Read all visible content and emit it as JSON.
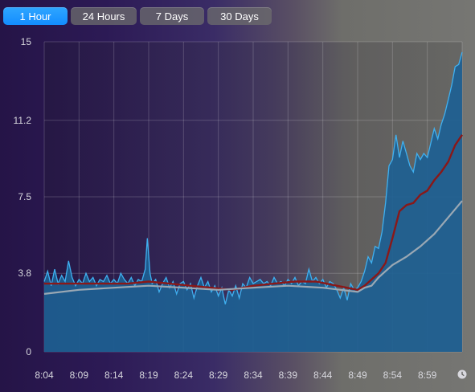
{
  "tabs": [
    {
      "label": "1 Hour",
      "active": true
    },
    {
      "label": "24 Hours",
      "active": false
    },
    {
      "label": "7 Days",
      "active": false
    },
    {
      "label": "30 Days",
      "active": false
    }
  ],
  "clock_icon": "clock-icon",
  "colors": {
    "area": "#1d5f92",
    "area_line": "#3fb0f0",
    "average_line": "#8a1818",
    "baseline_line": "#9aa8b4",
    "tab_active": "#1b95ff"
  },
  "chart_data": {
    "type": "area",
    "title": "",
    "xlabel": "",
    "ylabel": "",
    "ylim": [
      0,
      15
    ],
    "y_ticks": [
      "0",
      "3.8",
      "7.5",
      "11.2",
      "15"
    ],
    "y_tick_values": [
      0,
      3.8,
      7.5,
      11.2,
      15
    ],
    "x_ticks": [
      "8:04",
      "8:09",
      "8:14",
      "8:19",
      "8:24",
      "8:29",
      "8:34",
      "8:39",
      "8:44",
      "8:49",
      "8:54",
      "8:59"
    ],
    "x_tick_values": [
      0,
      5,
      10,
      15,
      20,
      25,
      30,
      35,
      40,
      45,
      50,
      55
    ],
    "xlim": [
      0,
      60
    ],
    "grid": true,
    "series": [
      {
        "values": [
          [
            0,
            3.4
          ],
          [
            0.5,
            3.9
          ],
          [
            1,
            3.2
          ],
          [
            1.5,
            4.0
          ],
          [
            2,
            3.3
          ],
          [
            2.5,
            3.7
          ],
          [
            3,
            3.4
          ],
          [
            3.5,
            4.4
          ],
          [
            4,
            3.6
          ],
          [
            4.5,
            3.2
          ],
          [
            5,
            3.5
          ],
          [
            5.5,
            3.3
          ],
          [
            6,
            3.8
          ],
          [
            6.5,
            3.4
          ],
          [
            7,
            3.6
          ],
          [
            7.5,
            3.2
          ],
          [
            8,
            3.5
          ],
          [
            8.5,
            3.4
          ],
          [
            9,
            3.7
          ],
          [
            9.5,
            3.3
          ],
          [
            10,
            3.5
          ],
          [
            10.5,
            3.3
          ],
          [
            11,
            3.8
          ],
          [
            11.5,
            3.5
          ],
          [
            12,
            3.3
          ],
          [
            12.5,
            3.6
          ],
          [
            13,
            3.2
          ],
          [
            13.5,
            3.5
          ],
          [
            14,
            3.4
          ],
          [
            14.5,
            4.0
          ],
          [
            14.8,
            5.5
          ],
          [
            15.2,
            3.8
          ],
          [
            15.5,
            3.3
          ],
          [
            16,
            3.5
          ],
          [
            16.5,
            2.9
          ],
          [
            17,
            3.3
          ],
          [
            17.5,
            3.6
          ],
          [
            18,
            3.1
          ],
          [
            18.5,
            3.4
          ],
          [
            19,
            2.8
          ],
          [
            19.5,
            3.3
          ],
          [
            20,
            3.4
          ],
          [
            20.5,
            3.0
          ],
          [
            21,
            3.3
          ],
          [
            21.5,
            2.6
          ],
          [
            22,
            3.2
          ],
          [
            22.5,
            3.6
          ],
          [
            23,
            3.1
          ],
          [
            23.5,
            3.4
          ],
          [
            24,
            2.9
          ],
          [
            24.5,
            3.2
          ],
          [
            25,
            2.7
          ],
          [
            25.5,
            3.1
          ],
          [
            26,
            2.3
          ],
          [
            26.5,
            3.0
          ],
          [
            27,
            2.7
          ],
          [
            27.5,
            3.2
          ],
          [
            28,
            2.6
          ],
          [
            28.5,
            3.3
          ],
          [
            29,
            3.1
          ],
          [
            29.5,
            3.6
          ],
          [
            30,
            3.3
          ],
          [
            30.5,
            3.4
          ],
          [
            31,
            3.5
          ],
          [
            31.5,
            3.3
          ],
          [
            32,
            3.4
          ],
          [
            32.5,
            3.2
          ],
          [
            33,
            3.6
          ],
          [
            33.5,
            3.3
          ],
          [
            34,
            3.4
          ],
          [
            34.5,
            3.2
          ],
          [
            35,
            3.5
          ],
          [
            35.5,
            3.3
          ],
          [
            36,
            3.6
          ],
          [
            36.5,
            3.2
          ],
          [
            37,
            3.4
          ],
          [
            37.5,
            3.3
          ],
          [
            38,
            4.0
          ],
          [
            38.5,
            3.4
          ],
          [
            39,
            3.6
          ],
          [
            39.5,
            3.3
          ],
          [
            40,
            3.5
          ],
          [
            40.5,
            3.1
          ],
          [
            41,
            3.4
          ],
          [
            41.5,
            3.3
          ],
          [
            42,
            3.0
          ],
          [
            42.5,
            2.6
          ],
          [
            43,
            3.1
          ],
          [
            43.5,
            2.5
          ],
          [
            44,
            3.3
          ],
          [
            44.5,
            3.0
          ],
          [
            45,
            3.1
          ],
          [
            45.5,
            3.4
          ],
          [
            46,
            3.9
          ],
          [
            46.5,
            4.6
          ],
          [
            47,
            4.3
          ],
          [
            47.5,
            5.1
          ],
          [
            48,
            5.0
          ],
          [
            48.5,
            5.8
          ],
          [
            49,
            7.2
          ],
          [
            49.5,
            9.0
          ],
          [
            50,
            9.3
          ],
          [
            50.5,
            10.5
          ],
          [
            51,
            9.4
          ],
          [
            51.5,
            10.2
          ],
          [
            52,
            9.6
          ],
          [
            52.5,
            9.0
          ],
          [
            53,
            8.7
          ],
          [
            53.5,
            9.6
          ],
          [
            54,
            9.3
          ],
          [
            54.5,
            9.6
          ],
          [
            55,
            9.4
          ],
          [
            55.5,
            10.1
          ],
          [
            56,
            10.8
          ],
          [
            56.5,
            10.3
          ],
          [
            57,
            11.0
          ],
          [
            57.5,
            11.5
          ],
          [
            58,
            12.2
          ],
          [
            58.5,
            12.9
          ],
          [
            59,
            13.8
          ],
          [
            59.5,
            13.9
          ],
          [
            60,
            14.5
          ]
        ]
      },
      {
        "values": [
          [
            0,
            3.3
          ],
          [
            3,
            3.3
          ],
          [
            6,
            3.3
          ],
          [
            9,
            3.3
          ],
          [
            12,
            3.3
          ],
          [
            15,
            3.4
          ],
          [
            18,
            3.3
          ],
          [
            21,
            3.2
          ],
          [
            24,
            3.1
          ],
          [
            27,
            3.0
          ],
          [
            30,
            3.2
          ],
          [
            33,
            3.3
          ],
          [
            36,
            3.4
          ],
          [
            39,
            3.4
          ],
          [
            42,
            3.2
          ],
          [
            45,
            3.0
          ],
          [
            46,
            3.2
          ],
          [
            48,
            3.8
          ],
          [
            49,
            4.3
          ],
          [
            50,
            5.5
          ],
          [
            51,
            6.8
          ],
          [
            52,
            7.1
          ],
          [
            53,
            7.2
          ],
          [
            54,
            7.6
          ],
          [
            55,
            7.8
          ],
          [
            56,
            8.3
          ],
          [
            57,
            8.7
          ],
          [
            58,
            9.2
          ],
          [
            59,
            10.0
          ],
          [
            60,
            10.5
          ]
        ]
      },
      {
        "values": [
          [
            0,
            2.8
          ],
          [
            5,
            3.0
          ],
          [
            10,
            3.1
          ],
          [
            15,
            3.2
          ],
          [
            20,
            3.1
          ],
          [
            25,
            3.0
          ],
          [
            30,
            3.1
          ],
          [
            35,
            3.2
          ],
          [
            40,
            3.1
          ],
          [
            45,
            2.9
          ],
          [
            46,
            3.1
          ],
          [
            47,
            3.2
          ],
          [
            48,
            3.6
          ],
          [
            49,
            3.9
          ],
          [
            50,
            4.2
          ],
          [
            52,
            4.6
          ],
          [
            54,
            5.1
          ],
          [
            56,
            5.7
          ],
          [
            58,
            6.5
          ],
          [
            60,
            7.3
          ]
        ]
      }
    ]
  }
}
